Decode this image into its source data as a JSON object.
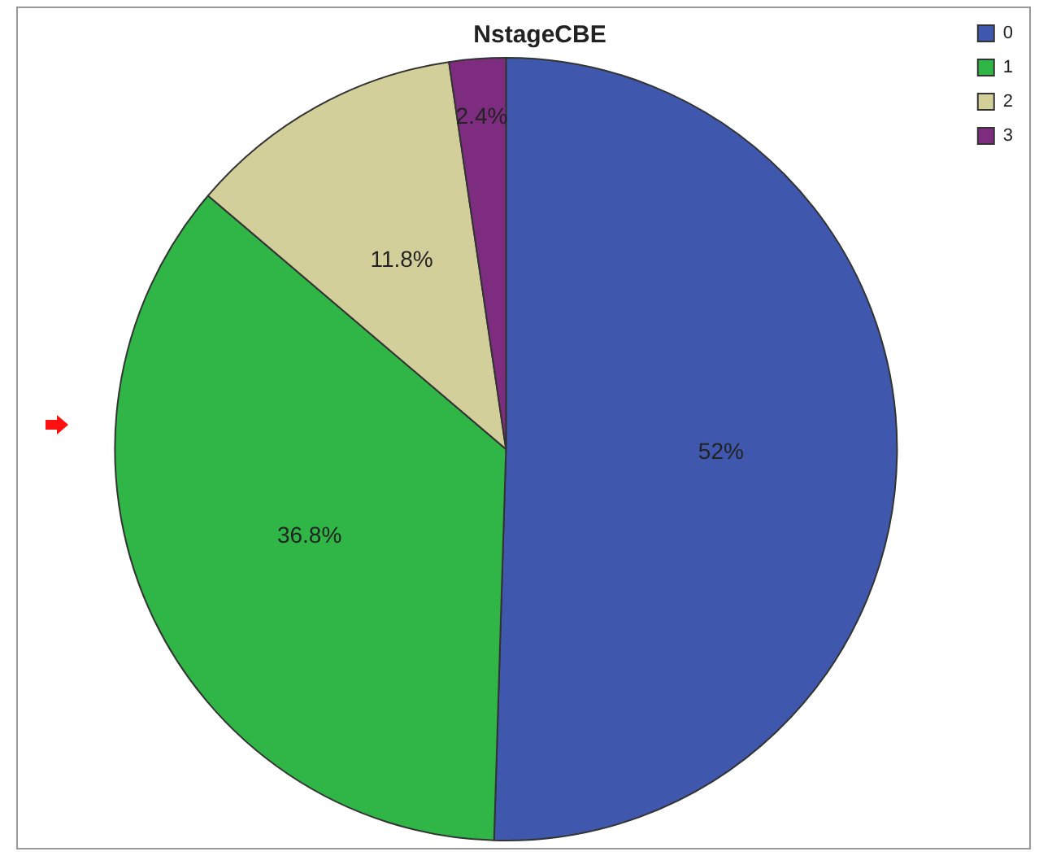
{
  "chart_data": {
    "type": "pie",
    "title": "NstageCBE",
    "categories": [
      "0",
      "1",
      "2",
      "3"
    ],
    "values": [
      52,
      36.8,
      11.8,
      2.4
    ],
    "colors": [
      "#3f58ad",
      "#2fb646",
      "#d3cf9b",
      "#7d2c7f"
    ],
    "value_labels": [
      "52%",
      "36.8%",
      "11.8%",
      "2.4%"
    ],
    "legend": "top right"
  }
}
